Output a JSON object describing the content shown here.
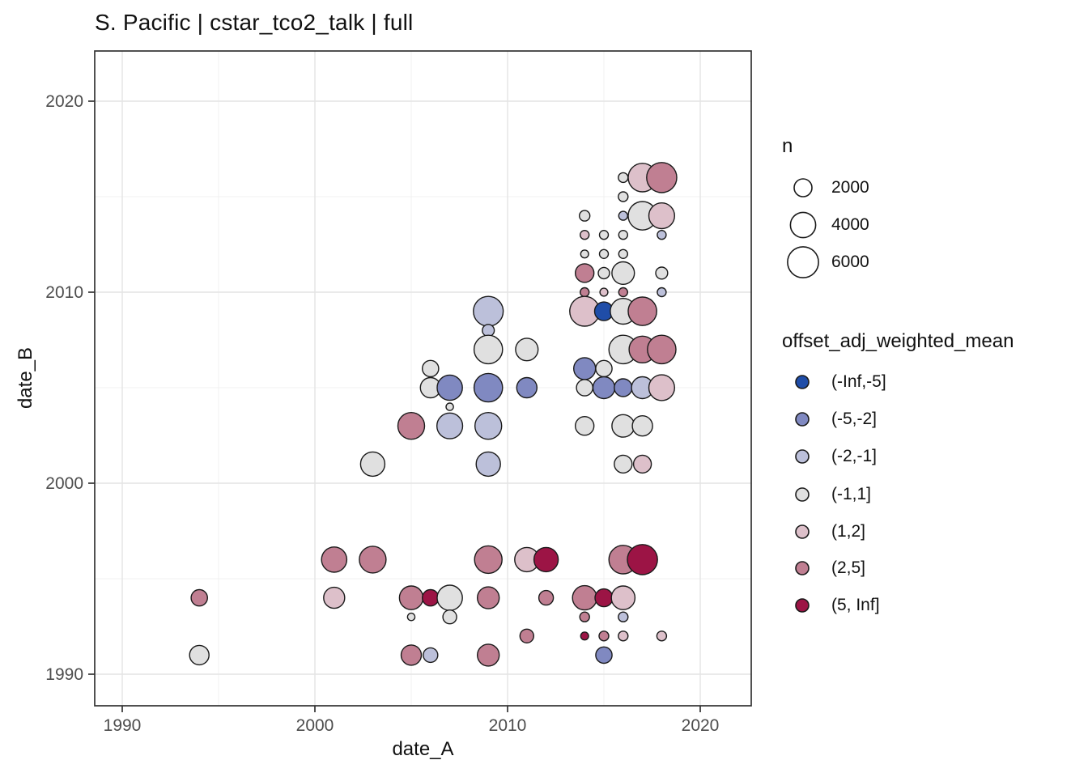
{
  "chart_data": {
    "type": "scatter",
    "title": "S. Pacific | cstar_tco2_talk | full",
    "xlabel": "date_A",
    "ylabel": "date_B",
    "x_ticks": [
      1990,
      2000,
      2010,
      2020
    ],
    "y_ticks": [
      1990,
      2000,
      2010,
      2020
    ],
    "x_minor": [
      1995,
      2005,
      2015
    ],
    "y_minor": [
      1995,
      2005,
      2015
    ],
    "xlim": [
      1988.6,
      2022.7
    ],
    "ylim": [
      1987.4,
      2022.6
    ],
    "grid": "on",
    "legend_position": "right",
    "size_legend": {
      "title": "n",
      "values": [
        2000,
        4000,
        6000
      ]
    },
    "color_legend": {
      "title": "offset_adj_weighted_mean",
      "bins": [
        {
          "label": "(-Inf,-5]",
          "color": "#1f4da8"
        },
        {
          "label": "(-5,-2]",
          "color": "#8089c1"
        },
        {
          "label": "(-2,-1]",
          "color": "#bcc0da"
        },
        {
          "label": "(-1,1]",
          "color": "#e0e0e0"
        },
        {
          "label": "(1,2]",
          "color": "#ddc0ca"
        },
        {
          "label": "(2,5]",
          "color": "#c07f92"
        },
        {
          "label": "(5, Inf]",
          "color": "#9c1445"
        }
      ]
    },
    "points": [
      {
        "x": 1994,
        "y": 1994,
        "bin": "(2,5]",
        "n": 1700
      },
      {
        "x": 1994,
        "y": 1991,
        "bin": "(-1,1]",
        "n": 2400
      },
      {
        "x": 2001,
        "y": 1996,
        "bin": "(2,5]",
        "n": 4000
      },
      {
        "x": 2001,
        "y": 1994,
        "bin": "(1,2]",
        "n": 2800
      },
      {
        "x": 2003,
        "y": 2001,
        "bin": "(-1,1]",
        "n": 3700
      },
      {
        "x": 2003,
        "y": 1996,
        "bin": "(2,5]",
        "n": 4500
      },
      {
        "x": 2005,
        "y": 2003,
        "bin": "(2,5]",
        "n": 4500
      },
      {
        "x": 2005,
        "y": 1994,
        "bin": "(2,5]",
        "n": 3500
      },
      {
        "x": 2005,
        "y": 1993,
        "bin": "(-1,1]",
        "n": 350
      },
      {
        "x": 2005,
        "y": 1991,
        "bin": "(2,5]",
        "n": 2600
      },
      {
        "x": 2006,
        "y": 2006,
        "bin": "(-1,1]",
        "n": 1700
      },
      {
        "x": 2006,
        "y": 2005,
        "bin": "(-1,1]",
        "n": 2600
      },
      {
        "x": 2006,
        "y": 1994,
        "bin": "(5, Inf]",
        "n": 1700
      },
      {
        "x": 2006,
        "y": 1991,
        "bin": "(-2,-1]",
        "n": 1350
      },
      {
        "x": 2007,
        "y": 2005,
        "bin": "(-5,-2]",
        "n": 4000
      },
      {
        "x": 2007,
        "y": 2004,
        "bin": "(-1,1]",
        "n": 350
      },
      {
        "x": 2007,
        "y": 2003,
        "bin": "(-2,-1]",
        "n": 4200
      },
      {
        "x": 2007,
        "y": 1994,
        "bin": "(-1,1]",
        "n": 4000
      },
      {
        "x": 2007,
        "y": 1993,
        "bin": "(-1,1]",
        "n": 1200
      },
      {
        "x": 2009,
        "y": 2009,
        "bin": "(-2,-1]",
        "n": 5600
      },
      {
        "x": 2009,
        "y": 2008,
        "bin": "(-2,-1]",
        "n": 900
      },
      {
        "x": 2009,
        "y": 2007,
        "bin": "(-1,1]",
        "n": 5100
      },
      {
        "x": 2009,
        "y": 2005,
        "bin": "(-5,-2]",
        "n": 5100
      },
      {
        "x": 2009,
        "y": 2003,
        "bin": "(-2,-1]",
        "n": 4500
      },
      {
        "x": 2009,
        "y": 2001,
        "bin": "(-2,-1]",
        "n": 3700
      },
      {
        "x": 2009,
        "y": 1996,
        "bin": "(2,5]",
        "n": 4800
      },
      {
        "x": 2009,
        "y": 1994,
        "bin": "(2,5]",
        "n": 3000
      },
      {
        "x": 2009,
        "y": 1991,
        "bin": "(2,5]",
        "n": 3000
      },
      {
        "x": 2011,
        "y": 2007,
        "bin": "(-1,1]",
        "n": 3200
      },
      {
        "x": 2011,
        "y": 2005,
        "bin": "(-5,-2]",
        "n": 2600
      },
      {
        "x": 2011,
        "y": 1996,
        "bin": "(1,2]",
        "n": 3700
      },
      {
        "x": 2011,
        "y": 1992,
        "bin": "(2,5]",
        "n": 1200
      },
      {
        "x": 2012,
        "y": 1996,
        "bin": "(5, Inf]",
        "n": 3700
      },
      {
        "x": 2012,
        "y": 1994,
        "bin": "(2,5]",
        "n": 1350
      },
      {
        "x": 2014,
        "y": 2014,
        "bin": "(-1,1]",
        "n": 700
      },
      {
        "x": 2014,
        "y": 2013,
        "bin": "(1,2]",
        "n": 500
      },
      {
        "x": 2014,
        "y": 2012,
        "bin": "(-1,1]",
        "n": 400
      },
      {
        "x": 2014,
        "y": 2011,
        "bin": "(2,5]",
        "n": 2200
      },
      {
        "x": 2014,
        "y": 2010,
        "bin": "(2,5]",
        "n": 500
      },
      {
        "x": 2014,
        "y": 2009,
        "bin": "(1,2]",
        "n": 5600
      },
      {
        "x": 2014,
        "y": 2006,
        "bin": "(-5,-2]",
        "n": 3000
      },
      {
        "x": 2014,
        "y": 2005,
        "bin": "(-1,1]",
        "n": 1700
      },
      {
        "x": 2014,
        "y": 2003,
        "bin": "(-1,1]",
        "n": 2200
      },
      {
        "x": 2014,
        "y": 1994,
        "bin": "(2,5]",
        "n": 3700
      },
      {
        "x": 2014,
        "y": 1993,
        "bin": "(2,5]",
        "n": 600
      },
      {
        "x": 2014,
        "y": 1992,
        "bin": "(5, Inf]",
        "n": 400
      },
      {
        "x": 2015,
        "y": 2013,
        "bin": "(-1,1]",
        "n": 500
      },
      {
        "x": 2015,
        "y": 2012,
        "bin": "(-1,1]",
        "n": 500
      },
      {
        "x": 2015,
        "y": 2011,
        "bin": "(-1,1]",
        "n": 800
      },
      {
        "x": 2015,
        "y": 2010,
        "bin": "(1,2]",
        "n": 400
      },
      {
        "x": 2015,
        "y": 2009,
        "bin": "(-Inf,-5]",
        "n": 2200
      },
      {
        "x": 2015,
        "y": 2006,
        "bin": "(-1,1]",
        "n": 1700
      },
      {
        "x": 2015,
        "y": 2005,
        "bin": "(-5,-2]",
        "n": 3000
      },
      {
        "x": 2015,
        "y": 1994,
        "bin": "(5, Inf]",
        "n": 2000
      },
      {
        "x": 2015,
        "y": 1992,
        "bin": "(2,5]",
        "n": 600
      },
      {
        "x": 2015,
        "y": 1991,
        "bin": "(-5,-2]",
        "n": 1700
      },
      {
        "x": 2016,
        "y": 2016,
        "bin": "(-1,1]",
        "n": 600
      },
      {
        "x": 2016,
        "y": 2015,
        "bin": "(-1,1]",
        "n": 600
      },
      {
        "x": 2016,
        "y": 2014,
        "bin": "(-2,-1]",
        "n": 500
      },
      {
        "x": 2016,
        "y": 2013,
        "bin": "(-1,1]",
        "n": 500
      },
      {
        "x": 2016,
        "y": 2012,
        "bin": "(-1,1]",
        "n": 500
      },
      {
        "x": 2016,
        "y": 2011,
        "bin": "(-1,1]",
        "n": 3200
      },
      {
        "x": 2016,
        "y": 2010,
        "bin": "(2,5]",
        "n": 500
      },
      {
        "x": 2016,
        "y": 2009,
        "bin": "(-1,1]",
        "n": 4200
      },
      {
        "x": 2016,
        "y": 2007,
        "bin": "(-1,1]",
        "n": 5100
      },
      {
        "x": 2016,
        "y": 2005,
        "bin": "(-5,-2]",
        "n": 2000
      },
      {
        "x": 2016,
        "y": 2003,
        "bin": "(-1,1]",
        "n": 3200
      },
      {
        "x": 2016,
        "y": 2001,
        "bin": "(-1,1]",
        "n": 2000
      },
      {
        "x": 2016,
        "y": 1996,
        "bin": "(2,5]",
        "n": 5100
      },
      {
        "x": 2016,
        "y": 1994,
        "bin": "(1,2]",
        "n": 3500
      },
      {
        "x": 2016,
        "y": 1993,
        "bin": "(-2,-1]",
        "n": 600
      },
      {
        "x": 2016,
        "y": 1992,
        "bin": "(1,2]",
        "n": 600
      },
      {
        "x": 2017,
        "y": 2016,
        "bin": "(1,2]",
        "n": 5100
      },
      {
        "x": 2017,
        "y": 2014,
        "bin": "(-1,1]",
        "n": 5100
      },
      {
        "x": 2017,
        "y": 2009,
        "bin": "(2,5]",
        "n": 5100
      },
      {
        "x": 2017,
        "y": 2007,
        "bin": "(2,5]",
        "n": 4500
      },
      {
        "x": 2017,
        "y": 2005,
        "bin": "(-2,-1]",
        "n": 3000
      },
      {
        "x": 2017,
        "y": 2003,
        "bin": "(-1,1]",
        "n": 2600
      },
      {
        "x": 2017,
        "y": 2001,
        "bin": "(1,2]",
        "n": 2000
      },
      {
        "x": 2017,
        "y": 1996,
        "bin": "(5, Inf]",
        "n": 5700
      },
      {
        "x": 2018,
        "y": 2016,
        "bin": "(2,5]",
        "n": 5700
      },
      {
        "x": 2018,
        "y": 2014,
        "bin": "(1,2]",
        "n": 4200
      },
      {
        "x": 2018,
        "y": 2013,
        "bin": "(-2,-1]",
        "n": 500
      },
      {
        "x": 2018,
        "y": 2011,
        "bin": "(-1,1]",
        "n": 900
      },
      {
        "x": 2018,
        "y": 2010,
        "bin": "(-2,-1]",
        "n": 500
      },
      {
        "x": 2018,
        "y": 2007,
        "bin": "(2,5]",
        "n": 5100
      },
      {
        "x": 2018,
        "y": 2005,
        "bin": "(1,2]",
        "n": 4200
      },
      {
        "x": 2018,
        "y": 1992,
        "bin": "(1,2]",
        "n": 600
      }
    ]
  }
}
